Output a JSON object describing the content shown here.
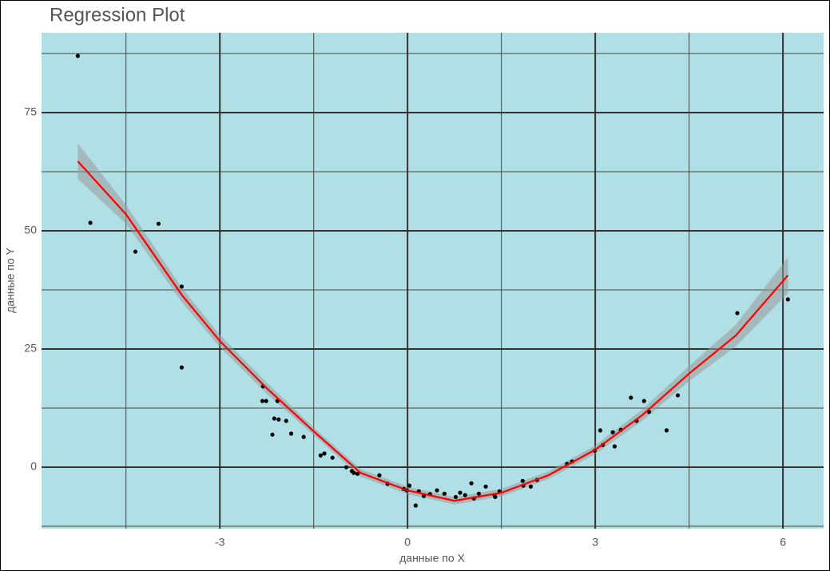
{
  "chart_data": {
    "type": "scatter",
    "title": "Regression Plot",
    "x_label": "данные по X",
    "y_label": "данные по Y",
    "xlim": [
      -5.85,
      6.65
    ],
    "ylim": [
      -13,
      91.9
    ],
    "xticks": [
      -3,
      0,
      3,
      6
    ],
    "yticks": [
      0,
      25,
      50,
      75
    ],
    "xminorticks": [
      -4.5,
      -1.5,
      1.5,
      4.5
    ],
    "yminorticks": [
      -12.5,
      12.5,
      37.5,
      62.5,
      87.5
    ],
    "grid": true,
    "panel_color": "#b0dfe5",
    "points": {
      "color": "#000000",
      "x": [
        -5.27,
        -5.07,
        -4.35,
        -3.98,
        -3.61,
        -3.61,
        -2.31,
        -2.32,
        -2.26,
        -2.08,
        -2.13,
        -2.06,
        -1.94,
        -2.16,
        -1.86,
        -1.66,
        -1.39,
        -1.33,
        -1.2,
        -0.98,
        -0.89,
        -0.86,
        -0.8,
        -0.45,
        -0.32,
        -0.06,
        0.03,
        -0.01,
        0.13,
        0.18,
        0.26,
        0.36,
        0.47,
        0.59,
        0.77,
        0.84,
        0.92,
        1.02,
        1.06,
        1.14,
        1.25,
        1.39,
        1.4,
        1.47,
        1.84,
        1.85,
        1.97,
        2.07,
        2.55,
        2.63,
        2.99,
        3.08,
        3.12,
        3.28,
        3.31,
        3.41,
        3.57,
        3.66,
        3.78,
        3.86,
        4.14,
        4.32,
        5.27,
        6.08
      ],
      "y": [
        87.0,
        51.7,
        45.6,
        51.5,
        38.2,
        21.1,
        17.1,
        14.0,
        14.0,
        14.0,
        10.3,
        10.1,
        9.8,
        6.9,
        7.1,
        6.4,
        2.5,
        2.9,
        2.0,
        0,
        -0.8,
        -1.2,
        -1.4,
        -1.7,
        -3.5,
        -4.6,
        -3.9,
        -4.9,
        -8.1,
        -5.1,
        -6.1,
        -5.7,
        -4.9,
        -5.6,
        -6.3,
        -5.4,
        -5.9,
        -3.4,
        -6.6,
        -5.6,
        -4.1,
        -5.9,
        -6.3,
        -5.1,
        -2.9,
        -3.9,
        -4.1,
        -2.7,
        0.7,
        1.2,
        3.5,
        7.8,
        4.7,
        7.4,
        4.4,
        7.9,
        14.7,
        9.8,
        14.0,
        11.7,
        7.8,
        15.2,
        32.6,
        35.5
      ]
    },
    "fit": {
      "color": "#ff0000",
      "band_color": "#999999",
      "x": [
        -5.27,
        -4.5,
        -3.6,
        -3,
        -2.25,
        -1.5,
        -0.75,
        0,
        0.75,
        1.5,
        2.25,
        3,
        3.75,
        4.5,
        5.25,
        6.08
      ],
      "y": [
        64.7,
        53.5,
        36.3,
        26.7,
        16.7,
        7.6,
        -1.2,
        -4.9,
        -7.1,
        -5.4,
        -1.7,
        3.7,
        11.0,
        19.8,
        27.9,
        40.6
      ],
      "ymin": [
        61,
        51.5,
        34.8,
        25.4,
        15.5,
        6.8,
        -2,
        -5.7,
        -7.9,
        -6.2,
        -2.5,
        2.8,
        9.8,
        18.2,
        25.6,
        36.8
      ],
      "ymax": [
        68.5,
        55.5,
        37.8,
        28,
        17.9,
        8.4,
        -0.4,
        -4.1,
        -6.3,
        -4.6,
        -0.9,
        4.6,
        12.2,
        21.4,
        30.2,
        44.4
      ]
    }
  }
}
